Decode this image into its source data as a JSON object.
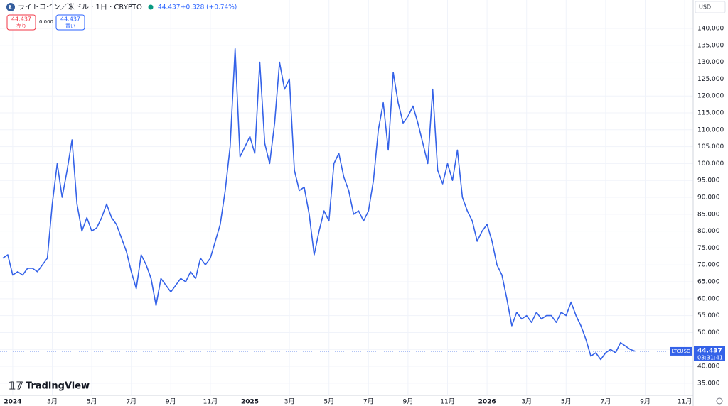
{
  "header": {
    "title": "ライトコイン／米ドル · 1日 · CRYPTO",
    "price": "44.437",
    "change": "+0.328 (+0.74%)",
    "sell_price": "44.437",
    "sell_label": "売り",
    "spread": "0.000",
    "buy_price": "44.437",
    "buy_label": "買い",
    "currency": "USD",
    "symbol_tag": "LTCUSD",
    "last_tag": "44.437",
    "countdown": "03:31:41",
    "logo": "TradingView"
  },
  "chart_data": {
    "type": "line",
    "categories": [
      null,
      null,
      "2024",
      null,
      null,
      null,
      null,
      null,
      null,
      null,
      "3月",
      null,
      null,
      null,
      null,
      null,
      null,
      null,
      "5月",
      null,
      null,
      null,
      null,
      null,
      null,
      null,
      "7月",
      null,
      null,
      null,
      null,
      null,
      null,
      null,
      "9月",
      null,
      null,
      null,
      null,
      null,
      null,
      null,
      "11月",
      null,
      null,
      null,
      null,
      null,
      null,
      null,
      "2025",
      null,
      null,
      null,
      null,
      null,
      null,
      null,
      "3月",
      null,
      null,
      null,
      null,
      null,
      null,
      null,
      "5月",
      null,
      null,
      null,
      null,
      null,
      null,
      null,
      "7月",
      null,
      null,
      null,
      null,
      null,
      null,
      null,
      "9月",
      null,
      null,
      null,
      null,
      null,
      null,
      null,
      "11月",
      null,
      null,
      null,
      null,
      null,
      null,
      null,
      "2026",
      null,
      null,
      null,
      null,
      null,
      null,
      null,
      "3月",
      null,
      null,
      null,
      null,
      null,
      null,
      null,
      "5月",
      null,
      null,
      null,
      null,
      null,
      null,
      null,
      "7月",
      null,
      null,
      null,
      null,
      null,
      null,
      null,
      "9月",
      null,
      null,
      null,
      null,
      null,
      null,
      null,
      "11月",
      null,
      null
    ],
    "series": [
      {
        "name": "LTCUSD",
        "color": "#3462e8",
        "values": [
          72,
          73,
          67,
          68,
          67,
          69,
          69,
          68,
          70,
          72,
          88,
          100,
          90,
          98,
          107,
          88,
          80,
          84,
          80,
          81,
          84,
          88,
          84,
          82,
          78,
          74,
          68,
          63,
          73,
          70,
          66,
          58,
          66,
          64,
          62,
          64,
          66,
          65,
          68,
          66,
          72,
          70,
          72,
          77,
          82,
          92,
          105,
          134,
          102,
          105,
          108,
          103,
          130,
          106,
          100,
          112,
          130,
          122,
          125,
          98,
          92,
          93,
          85,
          73,
          80,
          86,
          83,
          100,
          103,
          96,
          92,
          85,
          86,
          83,
          86,
          95,
          110,
          118,
          104,
          127,
          118,
          112,
          114,
          117,
          112,
          106,
          100,
          122,
          98,
          94,
          100,
          95,
          104,
          90,
          86,
          83,
          77,
          80,
          82,
          77,
          70,
          67,
          60,
          52,
          56,
          54,
          55,
          53,
          56,
          54,
          55,
          55,
          53,
          56,
          55,
          59,
          55,
          52,
          48,
          43,
          44,
          42,
          44,
          45,
          44,
          47,
          46,
          45,
          44.437,
          null,
          null,
          null,
          null,
          null,
          null,
          null,
          null,
          null,
          null,
          null,
          null
        ]
      }
    ],
    "ylim": [
      31.4,
      148.4
    ],
    "yticks": [
      {
        "value": 35,
        "label": "35.000"
      },
      {
        "value": 40,
        "label": "40.000"
      },
      {
        "value": 45,
        "label": "45.000"
      },
      {
        "value": 50,
        "label": "50.000"
      },
      {
        "value": 55,
        "label": "55.000"
      },
      {
        "value": 60,
        "label": "60.000"
      },
      {
        "value": 65,
        "label": "65.000"
      },
      {
        "value": 70,
        "label": "70.000"
      },
      {
        "value": 75,
        "label": "75.000"
      },
      {
        "value": 80,
        "label": "80.000"
      },
      {
        "value": 85,
        "label": "85.000"
      },
      {
        "value": 90,
        "label": "90.000"
      },
      {
        "value": 95,
        "label": "95.000"
      },
      {
        "value": 100,
        "label": "100.000"
      },
      {
        "value": 105,
        "label": "105.000"
      },
      {
        "value": 110,
        "label": "110.000"
      },
      {
        "value": 115,
        "label": "115.000"
      },
      {
        "value": 120,
        "label": "120.000"
      },
      {
        "value": 125,
        "label": "125.000"
      },
      {
        "value": 130,
        "label": "130.000"
      },
      {
        "value": 135,
        "label": "135.000"
      },
      {
        "value": 140,
        "label": "140.000"
      }
    ],
    "grid": true
  }
}
